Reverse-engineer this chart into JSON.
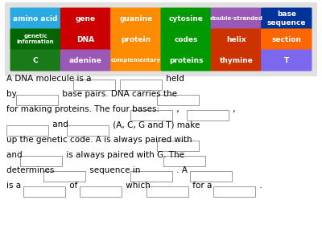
{
  "background_color": "#ffffff",
  "word_bank_bg": "#e8e8e8",
  "word_bank": [
    {
      "text": "amino acid",
      "color": "#29abe2",
      "row": 0,
      "col": 0
    },
    {
      "text": "gene",
      "color": "#cc0000",
      "row": 0,
      "col": 1
    },
    {
      "text": "guanine",
      "color": "#ff8c00",
      "row": 0,
      "col": 2
    },
    {
      "text": "cytosine",
      "color": "#009900",
      "row": 0,
      "col": 3
    },
    {
      "text": "double-stranded",
      "color": "#9b59b6",
      "row": 0,
      "col": 4,
      "small": true
    },
    {
      "text": "base\nsequence",
      "color": "#003399",
      "row": 0,
      "col": 5
    },
    {
      "text": "genetic\ninformation",
      "color": "#006600",
      "row": 1,
      "col": 0,
      "small": true
    },
    {
      "text": "DNA",
      "color": "#cc0000",
      "row": 1,
      "col": 1
    },
    {
      "text": "protein",
      "color": "#ff8c00",
      "row": 1,
      "col": 2
    },
    {
      "text": "codes",
      "color": "#009900",
      "row": 1,
      "col": 3
    },
    {
      "text": "helix",
      "color": "#cc3300",
      "row": 1,
      "col": 4
    },
    {
      "text": "section",
      "color": "#ff6600",
      "row": 1,
      "col": 5
    },
    {
      "text": "C",
      "color": "#1a7a1a",
      "row": 2,
      "col": 0
    },
    {
      "text": "adenine",
      "color": "#9b59b6",
      "row": 2,
      "col": 1
    },
    {
      "text": "complementary",
      "color": "#ff8c00",
      "row": 2,
      "col": 2,
      "small": true
    },
    {
      "text": "proteins",
      "color": "#009900",
      "row": 2,
      "col": 3
    },
    {
      "text": "thymine",
      "color": "#cc3300",
      "row": 2,
      "col": 4
    },
    {
      "text": "T",
      "color": "#7b68ee",
      "row": 2,
      "col": 5
    }
  ],
  "lines": [
    {
      "text": "A DNA molecule is a ",
      "blanks_after": true,
      "suffix": " held"
    },
    {
      "text": "by ",
      "blanks_after": true,
      "suffix": " base pairs. DNA carries the "
    },
    {
      "text": "for making proteins. The four bases: "
    },
    {
      "text": "     and      (A, C, G and T) make"
    },
    {
      "text": "up the genetic code. A is always paired with "
    },
    {
      "text": "and      is always paired with G. The "
    },
    {
      "text": "determines      sequence in      . A "
    },
    {
      "text": "is a      of      which      for a      ."
    }
  ]
}
